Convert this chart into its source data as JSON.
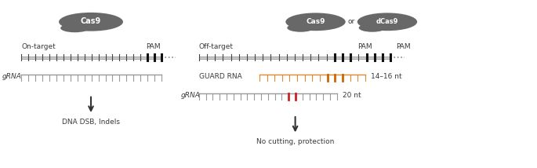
{
  "bg_color": "#ffffff",
  "text_color": "#3a3a3a",
  "gray_blob": "#686868",
  "orange_color": "#e8872a",
  "orange_dark": "#cc6600",
  "red_color": "#cc2222",
  "left_panel": {
    "label_ontarget": "On-target",
    "label_pam": "PAM",
    "grna_label": "gRNA",
    "result_text": "DNA DSB, Indels"
  },
  "right_panel": {
    "label_offtarget": "Off-target",
    "label_pam1": "PAM",
    "label_pam2": "PAM",
    "guard_label": "GUARD RNA",
    "guard_nt": "14–16 nt",
    "grna_label": "gRNA",
    "grna_nt": "20 nt",
    "result_text": "No cutting, protection"
  }
}
